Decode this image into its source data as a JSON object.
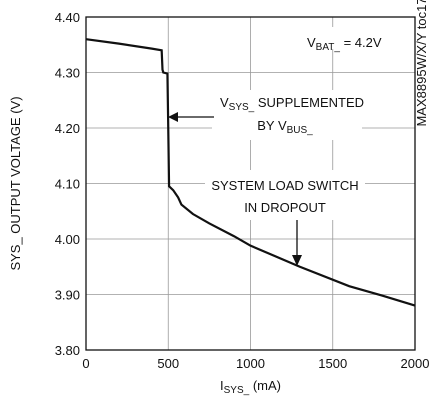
{
  "chart_data": {
    "type": "line",
    "x_label": [
      "I",
      "SYS_",
      " (mA)"
    ],
    "y_label": "SYS_ OUTPUT VOLTAGE (V)",
    "series": [
      {
        "color": "#111111",
        "x": [
          0,
          200,
          400,
          460,
          465,
          470,
          495,
          500,
          505,
          530,
          560,
          580,
          650,
          750,
          900,
          1000,
          1300,
          1600,
          1800,
          2000
        ],
        "values": [
          4.36,
          4.352,
          4.343,
          4.34,
          4.305,
          4.3,
          4.298,
          4.2,
          4.095,
          4.088,
          4.075,
          4.062,
          4.045,
          4.028,
          4.005,
          3.988,
          3.95,
          3.915,
          3.898,
          3.88
        ]
      }
    ],
    "xlim": [
      0,
      2000
    ],
    "xticks": [
      0,
      500,
      1000,
      1500,
      2000
    ],
    "ylim": [
      3.8,
      4.4
    ],
    "yticks": [
      {
        "value": 3.8,
        "label": "3.80"
      },
      {
        "value": 3.9,
        "label": "3.90"
      },
      {
        "value": 4.0,
        "label": "4.00"
      },
      {
        "value": 4.1,
        "label": "4.10"
      },
      {
        "value": 4.2,
        "label": "4.20"
      },
      {
        "value": 4.3,
        "label": "4.30"
      },
      {
        "value": 4.4,
        "label": "4.40"
      }
    ],
    "grid": true,
    "annotations": [
      [
        [
          "V",
          "BAT_",
          " = 4.2V"
        ]
      ],
      [
        [
          "V",
          "SYS_",
          " SUPPLEMENTED"
        ],
        [
          "BY V",
          "BUS_"
        ]
      ],
      [
        [
          "SYSTEM LOAD SWITCH"
        ],
        [
          "IN DROPOUT"
        ]
      ]
    ],
    "side_note": "MAX8895W/X/Y toc17"
  }
}
